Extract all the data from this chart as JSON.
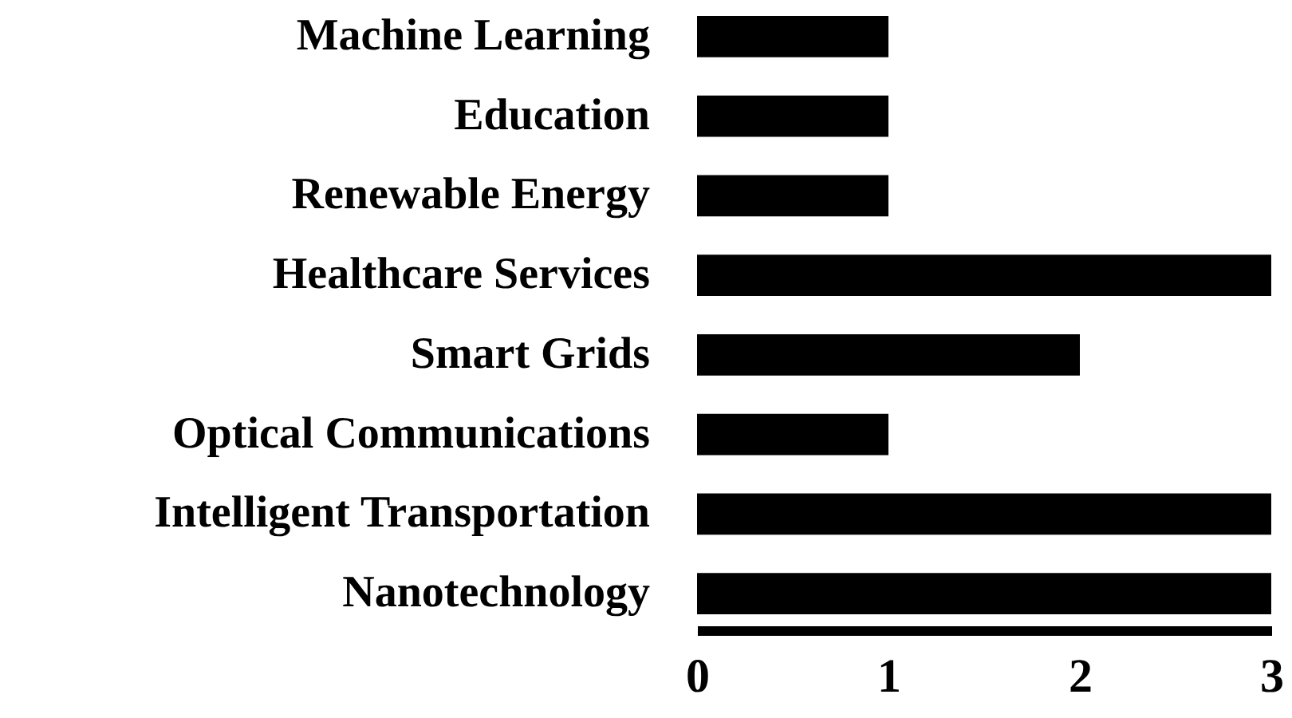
{
  "chart_data": {
    "type": "bar",
    "orientation": "horizontal",
    "categories": [
      "Machine Learning",
      "Education",
      "Renewable Energy",
      "Healthcare Services",
      "Smart Grids",
      "Optical Communications",
      "Intelligent Transportation",
      "Nanotechnology"
    ],
    "values": [
      1,
      1,
      1,
      3,
      2,
      1,
      3,
      3
    ],
    "color": "#000000",
    "xlim": [
      0,
      3
    ],
    "xticks": [
      0,
      1,
      2,
      3
    ],
    "grid": false
  }
}
